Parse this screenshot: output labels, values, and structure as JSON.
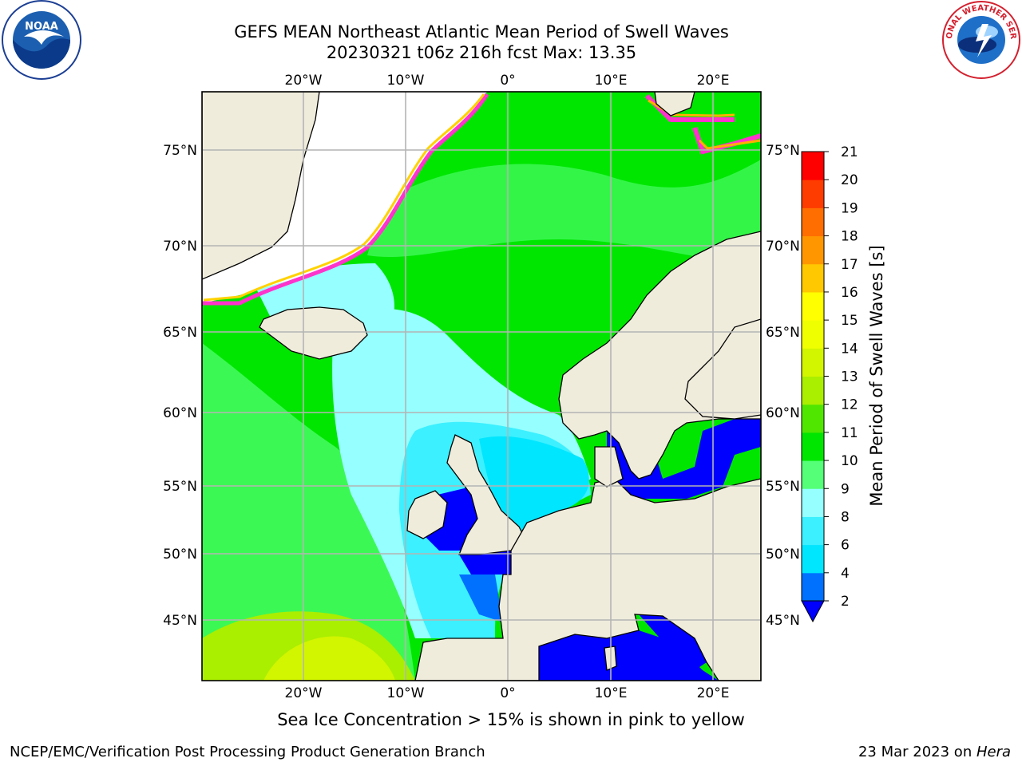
{
  "header": {
    "title_line1": "GEFS MEAN Northeast Atlantic Mean Period of Swell Waves",
    "title_line2": "20230321 t06z 216h fcst   Max: 13.35"
  },
  "logos": {
    "left": "noaa-logo",
    "right": "national-weather-service-logo",
    "left_text": "NOAA",
    "right_text": "NATIONAL WEATHER SERVICE"
  },
  "map": {
    "lon_labels": [
      "20°W",
      "10°W",
      "0°",
      "10°E",
      "20°E"
    ],
    "lat_labels": [
      "75°N",
      "70°N",
      "65°N",
      "60°N",
      "55°N",
      "50°N",
      "45°N"
    ],
    "colors": {
      "land": "#efecdc",
      "ice_free_white": "#ffffff",
      "grid": "#b0b0b0"
    }
  },
  "colorbar": {
    "title": "Mean Period of Swell Waves [s]",
    "ticks": [
      "2",
      "4",
      "6",
      "8",
      "9",
      "10",
      "11",
      "12",
      "13",
      "14",
      "15",
      "16",
      "17",
      "18",
      "19",
      "20",
      "21"
    ],
    "colors": [
      "#0070ff",
      "#00e6ff",
      "#3cf0ff",
      "#96ffff",
      "#55ff78",
      "#00e600",
      "#50e600",
      "#aaee00",
      "#d2f500",
      "#f0ff00",
      "#ffff00",
      "#ffc800",
      "#ff9600",
      "#ff6e00",
      "#ff3c00",
      "#ff0000"
    ],
    "extend_color": "#0000ff"
  },
  "footer": {
    "ice_note": "Sea Ice Concentration > 15% is shown in pink to yellow",
    "credit": "NCEP/EMC/Verification Post Processing Product Generation Branch",
    "date": "23 Mar 2023 on ",
    "host": "Hera"
  }
}
